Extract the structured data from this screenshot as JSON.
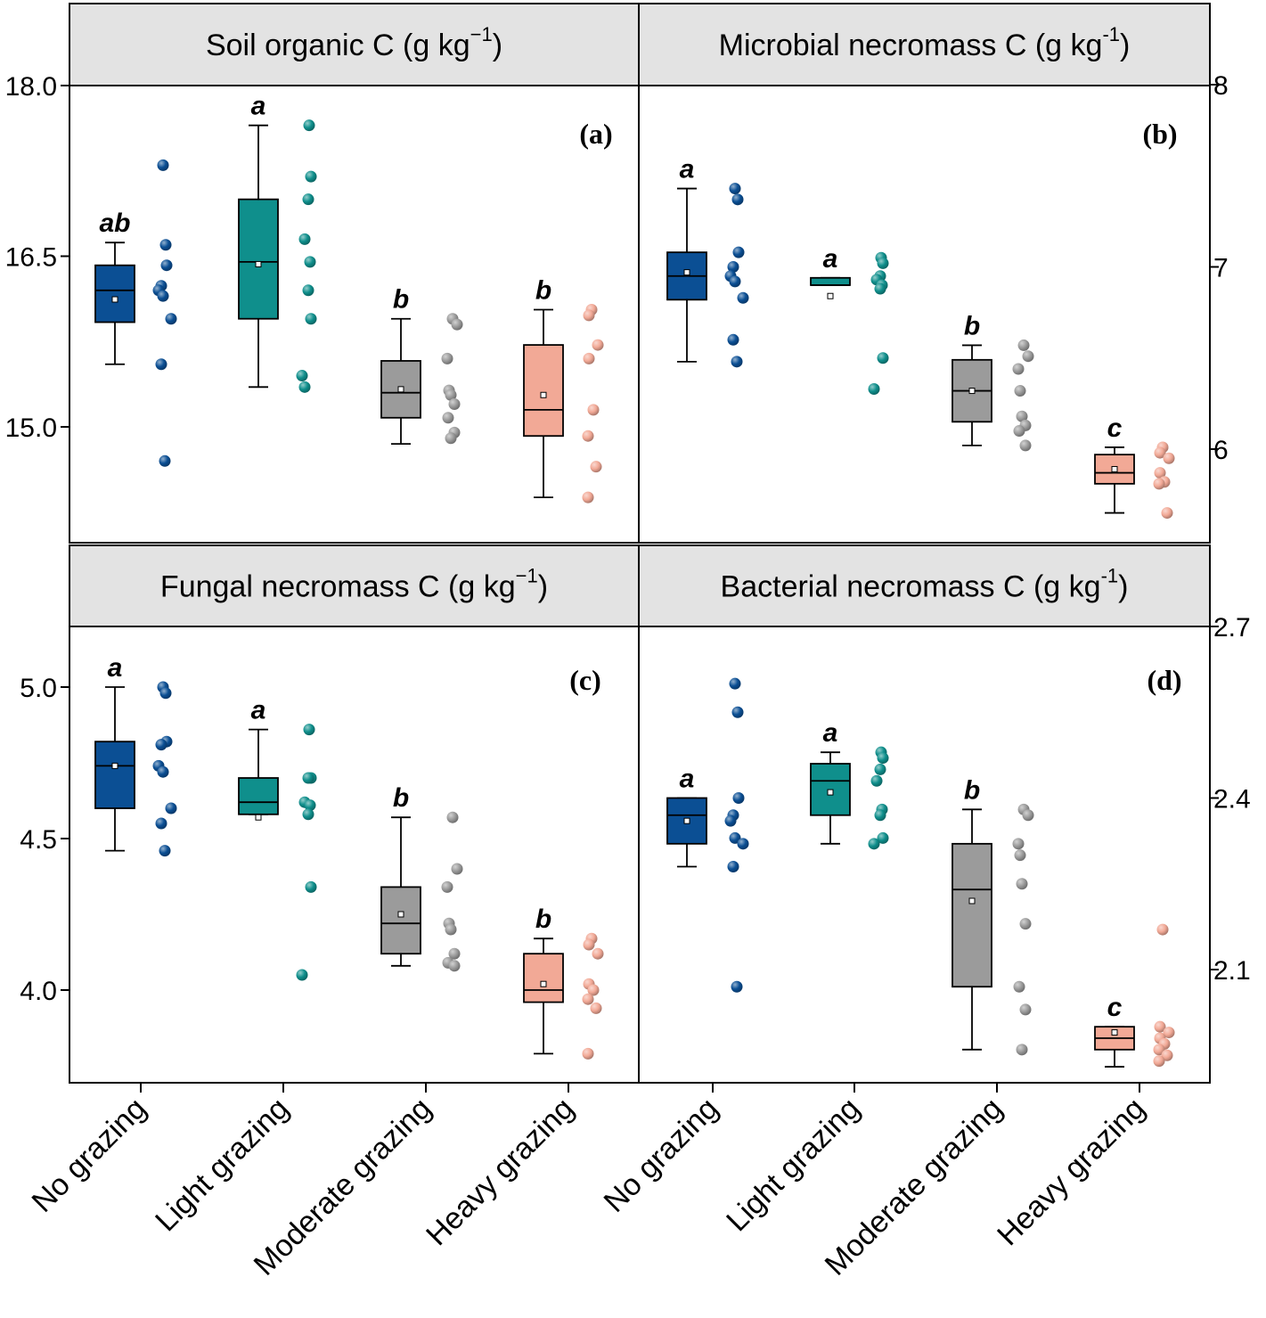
{
  "figure": {
    "categories": [
      "No grazing",
      "Light grazing",
      "Moderate grazing",
      "Heavy grazing"
    ],
    "colors": {
      "no_grazing": "#0b4f94",
      "light_grazing": "#0f8f8c",
      "moderate_grazing": "#9b9b9b",
      "heavy_grazing": "#f2a996",
      "header_bg": "#e3e3e3"
    }
  },
  "chart_data": [
    {
      "id": "a",
      "type": "box",
      "title": "Soil organic C (g kg",
      "unit_sup": "−1",
      "title_close": ")",
      "panel_label": "(a)",
      "axis_side": "left",
      "ylim": [
        14.0,
        18.0
      ],
      "yticks": [
        15.0,
        16.5,
        18.0
      ],
      "ytick_labels": [
        "15.0",
        "16.5",
        "18.0"
      ],
      "groups": [
        {
          "category": "No grazing",
          "letter": "ab",
          "box": {
            "whisker_low": 15.55,
            "q1": 15.92,
            "median": 16.2,
            "q3": 16.42,
            "whisker_high": 16.62,
            "mean": 16.12
          },
          "points": [
            17.3,
            16.6,
            16.42,
            16.24,
            16.2,
            16.15,
            15.95,
            15.55,
            14.7
          ]
        },
        {
          "category": "Light grazing",
          "letter": "a",
          "box": {
            "whisker_low": 15.35,
            "q1": 15.95,
            "median": 16.45,
            "q3": 17.0,
            "whisker_high": 17.65,
            "mean": 16.43
          },
          "points": [
            17.65,
            17.2,
            17.0,
            16.65,
            16.45,
            16.2,
            15.95,
            15.45,
            15.35
          ]
        },
        {
          "category": "Moderate grazing",
          "letter": "b",
          "box": {
            "whisker_low": 14.85,
            "q1": 15.08,
            "median": 15.3,
            "q3": 15.58,
            "whisker_high": 15.95,
            "mean": 15.33
          },
          "points": [
            15.95,
            15.9,
            15.6,
            15.32,
            15.28,
            15.2,
            15.08,
            14.95,
            14.9
          ]
        },
        {
          "category": "Heavy grazing",
          "letter": "b",
          "box": {
            "whisker_low": 14.38,
            "q1": 14.92,
            "median": 15.15,
            "q3": 15.72,
            "whisker_high": 16.03,
            "mean": 15.28
          },
          "points": [
            16.03,
            15.98,
            15.72,
            15.6,
            15.15,
            14.92,
            14.65,
            14.38
          ]
        }
      ]
    },
    {
      "id": "b",
      "type": "box",
      "title": "Microbial necromass C (g kg",
      "unit_sup": "-1",
      "title_close": ")",
      "panel_label": "(b)",
      "axis_side": "right",
      "ylim": [
        5.5,
        8.0
      ],
      "yticks": [
        6,
        7,
        8
      ],
      "ytick_labels": [
        "6",
        "7",
        "8"
      ],
      "groups": [
        {
          "category": "No grazing",
          "letter": "a",
          "box": {
            "whisker_low": 6.48,
            "q1": 6.82,
            "median": 6.95,
            "q3": 7.08,
            "whisker_high": 7.43,
            "mean": 6.97
          },
          "points": [
            7.43,
            7.37,
            7.08,
            7.0,
            6.95,
            6.92,
            6.83,
            6.6,
            6.48
          ]
        },
        {
          "category": "Light grazing",
          "letter": "a",
          "box": {
            "whisker_low": 6.9,
            "q1": 6.9,
            "median": 6.9,
            "q3": 6.94,
            "whisker_high": 6.94,
            "mean": 6.84
          },
          "points": [
            7.05,
            7.02,
            6.95,
            6.93,
            6.9,
            6.88,
            6.5,
            6.33
          ]
        },
        {
          "category": "Moderate grazing",
          "letter": "b",
          "box": {
            "whisker_low": 6.02,
            "q1": 6.15,
            "median": 6.32,
            "q3": 6.49,
            "whisker_high": 6.57,
            "mean": 6.32
          },
          "points": [
            6.57,
            6.51,
            6.44,
            6.32,
            6.18,
            6.13,
            6.1,
            6.02
          ]
        },
        {
          "category": "Heavy grazing",
          "letter": "c",
          "box": {
            "whisker_low": 5.65,
            "q1": 5.81,
            "median": 5.87,
            "q3": 5.97,
            "whisker_high": 6.01,
            "mean": 5.89
          },
          "points": [
            6.01,
            5.98,
            5.95,
            5.87,
            5.82,
            5.81,
            5.65
          ]
        }
      ]
    },
    {
      "id": "c",
      "type": "box",
      "title": "Fungal necromass C (g kg",
      "unit_sup": "−1",
      "title_close": ")",
      "panel_label": "(c)",
      "axis_side": "left",
      "ylim": [
        3.7,
        5.2
      ],
      "yticks": [
        4.0,
        4.5,
        5.0
      ],
      "ytick_labels": [
        "4.0",
        "4.5",
        "5.0"
      ],
      "groups": [
        {
          "category": "No grazing",
          "letter": "a",
          "box": {
            "whisker_low": 4.46,
            "q1": 4.6,
            "median": 4.74,
            "q3": 4.82,
            "whisker_high": 5.0,
            "mean": 4.74
          },
          "points": [
            5.0,
            4.98,
            4.82,
            4.81,
            4.74,
            4.72,
            4.6,
            4.55,
            4.46
          ]
        },
        {
          "category": "Light grazing",
          "letter": "a",
          "box": {
            "whisker_low": 4.58,
            "q1": 4.58,
            "median": 4.62,
            "q3": 4.7,
            "whisker_high": 4.86,
            "mean": 4.57
          },
          "points": [
            4.86,
            4.7,
            4.7,
            4.62,
            4.61,
            4.58,
            4.34,
            4.05
          ]
        },
        {
          "category": "Moderate grazing",
          "letter": "b",
          "box": {
            "whisker_low": 4.08,
            "q1": 4.12,
            "median": 4.22,
            "q3": 4.34,
            "whisker_high": 4.57,
            "mean": 4.25
          },
          "points": [
            4.57,
            4.4,
            4.34,
            4.22,
            4.2,
            4.12,
            4.09,
            4.08
          ]
        },
        {
          "category": "Heavy grazing",
          "letter": "b",
          "box": {
            "whisker_low": 3.79,
            "q1": 3.96,
            "median": 4.0,
            "q3": 4.12,
            "whisker_high": 4.17,
            "mean": 4.02
          },
          "points": [
            4.17,
            4.15,
            4.12,
            4.02,
            4.0,
            3.97,
            3.94,
            3.79
          ]
        }
      ]
    },
    {
      "id": "d",
      "type": "box",
      "title": "Bacterial necromass C (g kg",
      "unit_sup": "-1",
      "title_close": ")",
      "panel_label": "(d)",
      "axis_side": "right",
      "ylim": [
        1.92,
        2.7
      ],
      "yticks": [
        2.1,
        2.4,
        2.7
      ],
      "ytick_labels": [
        "2.1",
        "2.4",
        "2.7"
      ],
      "groups": [
        {
          "category": "No grazing",
          "letter": "a",
          "box": {
            "whisker_low": 2.28,
            "q1": 2.32,
            "median": 2.37,
            "q3": 2.4,
            "whisker_high": 2.4,
            "mean": 2.36
          },
          "points": [
            2.6,
            2.55,
            2.4,
            2.37,
            2.36,
            2.33,
            2.32,
            2.28,
            2.07
          ]
        },
        {
          "category": "Light grazing",
          "letter": "a",
          "box": {
            "whisker_low": 2.32,
            "q1": 2.37,
            "median": 2.43,
            "q3": 2.46,
            "whisker_high": 2.48,
            "mean": 2.41
          },
          "points": [
            2.48,
            2.47,
            2.45,
            2.43,
            2.38,
            2.37,
            2.33,
            2.32
          ]
        },
        {
          "category": "Moderate grazing",
          "letter": "b",
          "box": {
            "whisker_low": 1.96,
            "q1": 2.07,
            "median": 2.24,
            "q3": 2.32,
            "whisker_high": 2.38,
            "mean": 2.22
          },
          "points": [
            2.38,
            2.37,
            2.32,
            2.3,
            2.25,
            2.18,
            2.07,
            2.03,
            1.96
          ]
        },
        {
          "category": "Heavy grazing",
          "letter": "c",
          "box": {
            "whisker_low": 1.93,
            "q1": 1.96,
            "median": 1.98,
            "q3": 2.0,
            "whisker_high": 2.0,
            "mean": 1.99
          },
          "points": [
            2.17,
            2.0,
            1.99,
            1.98,
            1.97,
            1.96,
            1.95,
            1.94
          ]
        }
      ]
    }
  ]
}
